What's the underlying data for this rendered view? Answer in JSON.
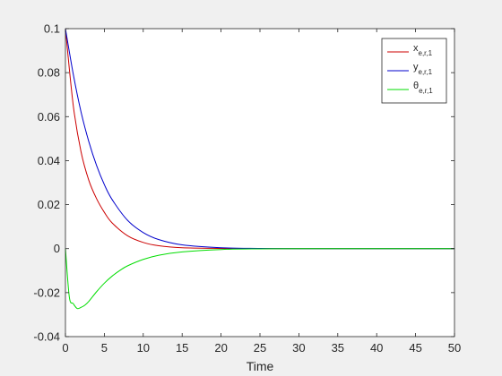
{
  "chart_data": {
    "type": "line",
    "xlabel": "Time",
    "ylabel": "",
    "xlim": [
      0,
      50
    ],
    "ylim": [
      -0.04,
      0.1
    ],
    "xticks": [
      0,
      5,
      10,
      15,
      20,
      25,
      30,
      35,
      40,
      45,
      50
    ],
    "yticks": [
      -0.04,
      -0.02,
      0,
      0.02,
      0.04,
      0.06,
      0.08,
      0.1
    ],
    "xtick_labels": [
      "0",
      "5",
      "10",
      "15",
      "20",
      "25",
      "30",
      "35",
      "40",
      "45",
      "50"
    ],
    "ytick_labels": [
      "-0.04",
      "-0.02",
      "0",
      "0.02",
      "0.04",
      "0.06",
      "0.08",
      "0.1"
    ],
    "grid": false,
    "legend_position": "top-right",
    "series": [
      {
        "name": "x",
        "subscript": "e,r,1",
        "color": "#cc0000",
        "x": [
          0,
          1,
          2,
          3,
          4,
          5,
          6,
          8,
          10,
          12,
          15,
          20,
          25,
          30,
          40,
          50
        ],
        "y": [
          0.1,
          0.0652,
          0.0441,
          0.0311,
          0.0227,
          0.0165,
          0.0117,
          0.0058,
          0.0028,
          0.0013,
          0.0004,
          0.0001,
          0,
          0,
          0,
          0
        ]
      },
      {
        "name": "y",
        "subscript": "e,r,1",
        "color": "#0000cc",
        "x": [
          0,
          1,
          2,
          3,
          4,
          5,
          6,
          8,
          10,
          12,
          15,
          20,
          25,
          30,
          40,
          50
        ],
        "y": [
          0.1,
          0.0794,
          0.0622,
          0.0487,
          0.0378,
          0.0291,
          0.0223,
          0.0128,
          0.0073,
          0.0041,
          0.0017,
          0.0004,
          0.0001,
          0,
          0,
          0
        ]
      },
      {
        "name": "θ",
        "subscript": "e,r,1",
        "color": "#00dd00",
        "x": [
          0,
          0.5,
          1,
          1.5,
          2,
          2.5,
          3,
          4,
          5,
          6,
          7,
          8,
          10,
          12,
          15,
          20,
          25,
          30,
          40,
          50
        ],
        "y": [
          0,
          -0.022,
          -0.025,
          -0.0272,
          -0.0267,
          -0.0257,
          -0.024,
          -0.0196,
          -0.0157,
          -0.0125,
          -0.0099,
          -0.0078,
          -0.0049,
          -0.003,
          -0.0015,
          -0.0004,
          -0.0001,
          0,
          0,
          0
        ]
      }
    ]
  }
}
